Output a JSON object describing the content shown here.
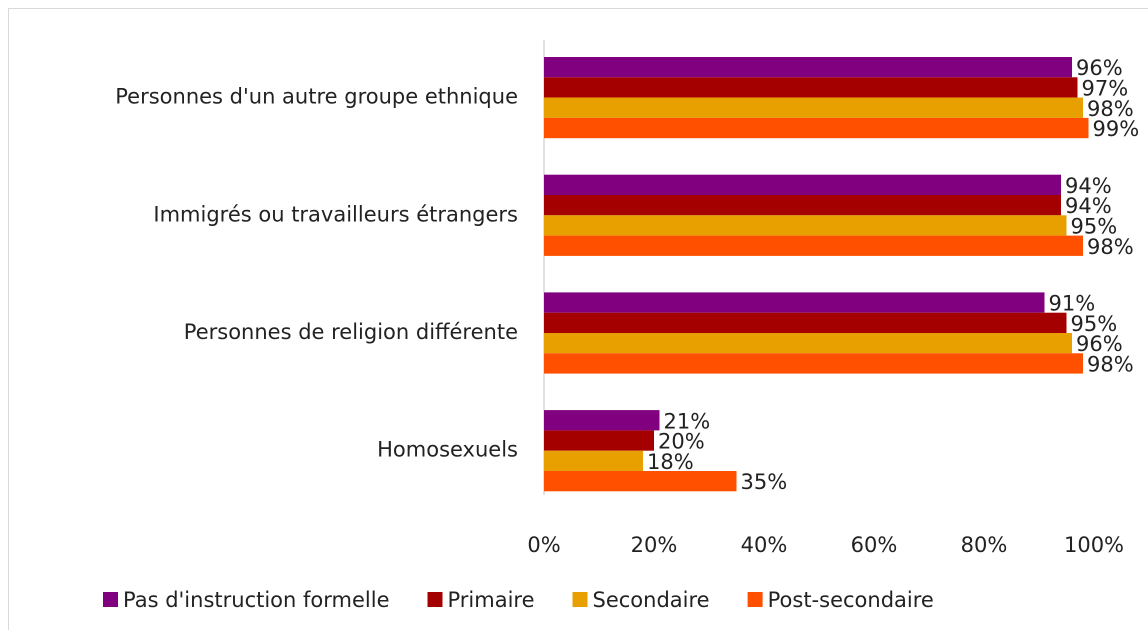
{
  "chart_data": {
    "type": "bar",
    "orientation": "horizontal",
    "categories": [
      "Personnes d'un autre groupe ethnique",
      "Immigrés ou travailleurs étrangers",
      "Personnes de religion différente",
      "Homosexuels"
    ],
    "series": [
      {
        "name": "Pas d'instruction formelle",
        "color": "#800080",
        "values": [
          96,
          94,
          91,
          21
        ],
        "value_labels": [
          "96%",
          "94%",
          "91%",
          "21%"
        ]
      },
      {
        "name": "Primaire",
        "color": "#a50000",
        "values": [
          97,
          94,
          95,
          20
        ],
        "value_labels": [
          "97%",
          "94%",
          "95%",
          "20%"
        ]
      },
      {
        "name": "Secondaire",
        "color": "#e8a000",
        "values": [
          98,
          95,
          96,
          18
        ],
        "value_labels": [
          "98%",
          "95%",
          "96%",
          "18%"
        ]
      },
      {
        "name": "Post-secondaire",
        "color": "#ff5000",
        "values": [
          99,
          98,
          98,
          35
        ],
        "value_labels": [
          "99%",
          "98%",
          "98%",
          "35%"
        ]
      }
    ],
    "xlim": [
      0,
      100
    ],
    "xticks": [
      {
        "value": 0,
        "label": "0%"
      },
      {
        "value": 20,
        "label": "20%"
      },
      {
        "value": 40,
        "label": "40%"
      },
      {
        "value": 60,
        "label": "60%"
      },
      {
        "value": 80,
        "label": "80%"
      },
      {
        "value": 100,
        "label": "100%"
      }
    ],
    "legend": "bottom"
  }
}
